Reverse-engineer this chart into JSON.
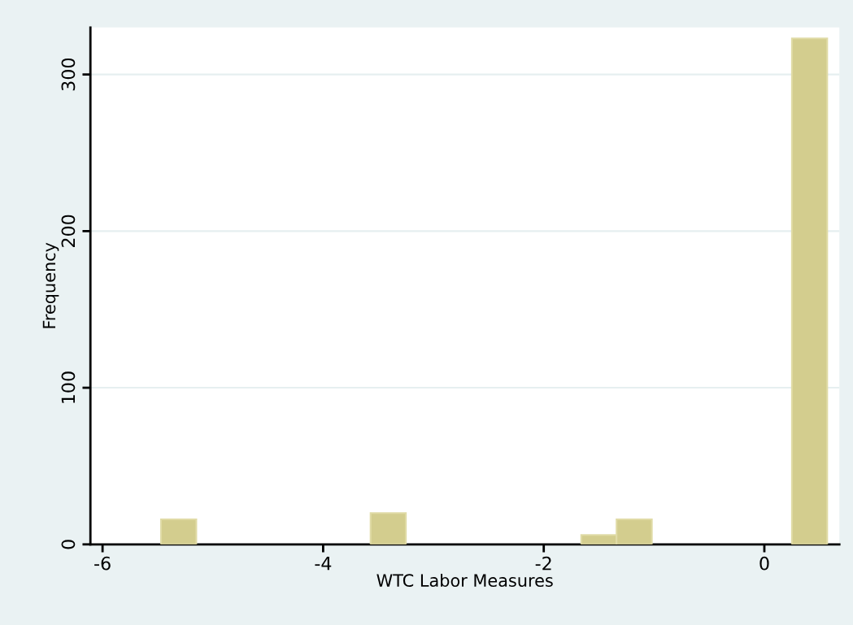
{
  "chart_data": {
    "type": "histogram",
    "xlabel": "WTC Labor Measures",
    "ylabel": "Frequency",
    "bins": [
      -5.47,
      -5.15,
      -3.57,
      -3.25,
      -1.66,
      -1.34,
      -1.02,
      0.25,
      0.57
    ],
    "values": [
      16,
      0,
      20,
      0,
      6,
      16,
      0,
      323
    ],
    "color": "#d3cd8e",
    "xlim": [
      -6.11,
      0.68
    ],
    "xticks": [
      -6,
      -4,
      -2,
      0
    ],
    "ylim": [
      0,
      330
    ],
    "yticks": [
      0,
      100,
      200,
      300
    ],
    "grid": "y"
  }
}
